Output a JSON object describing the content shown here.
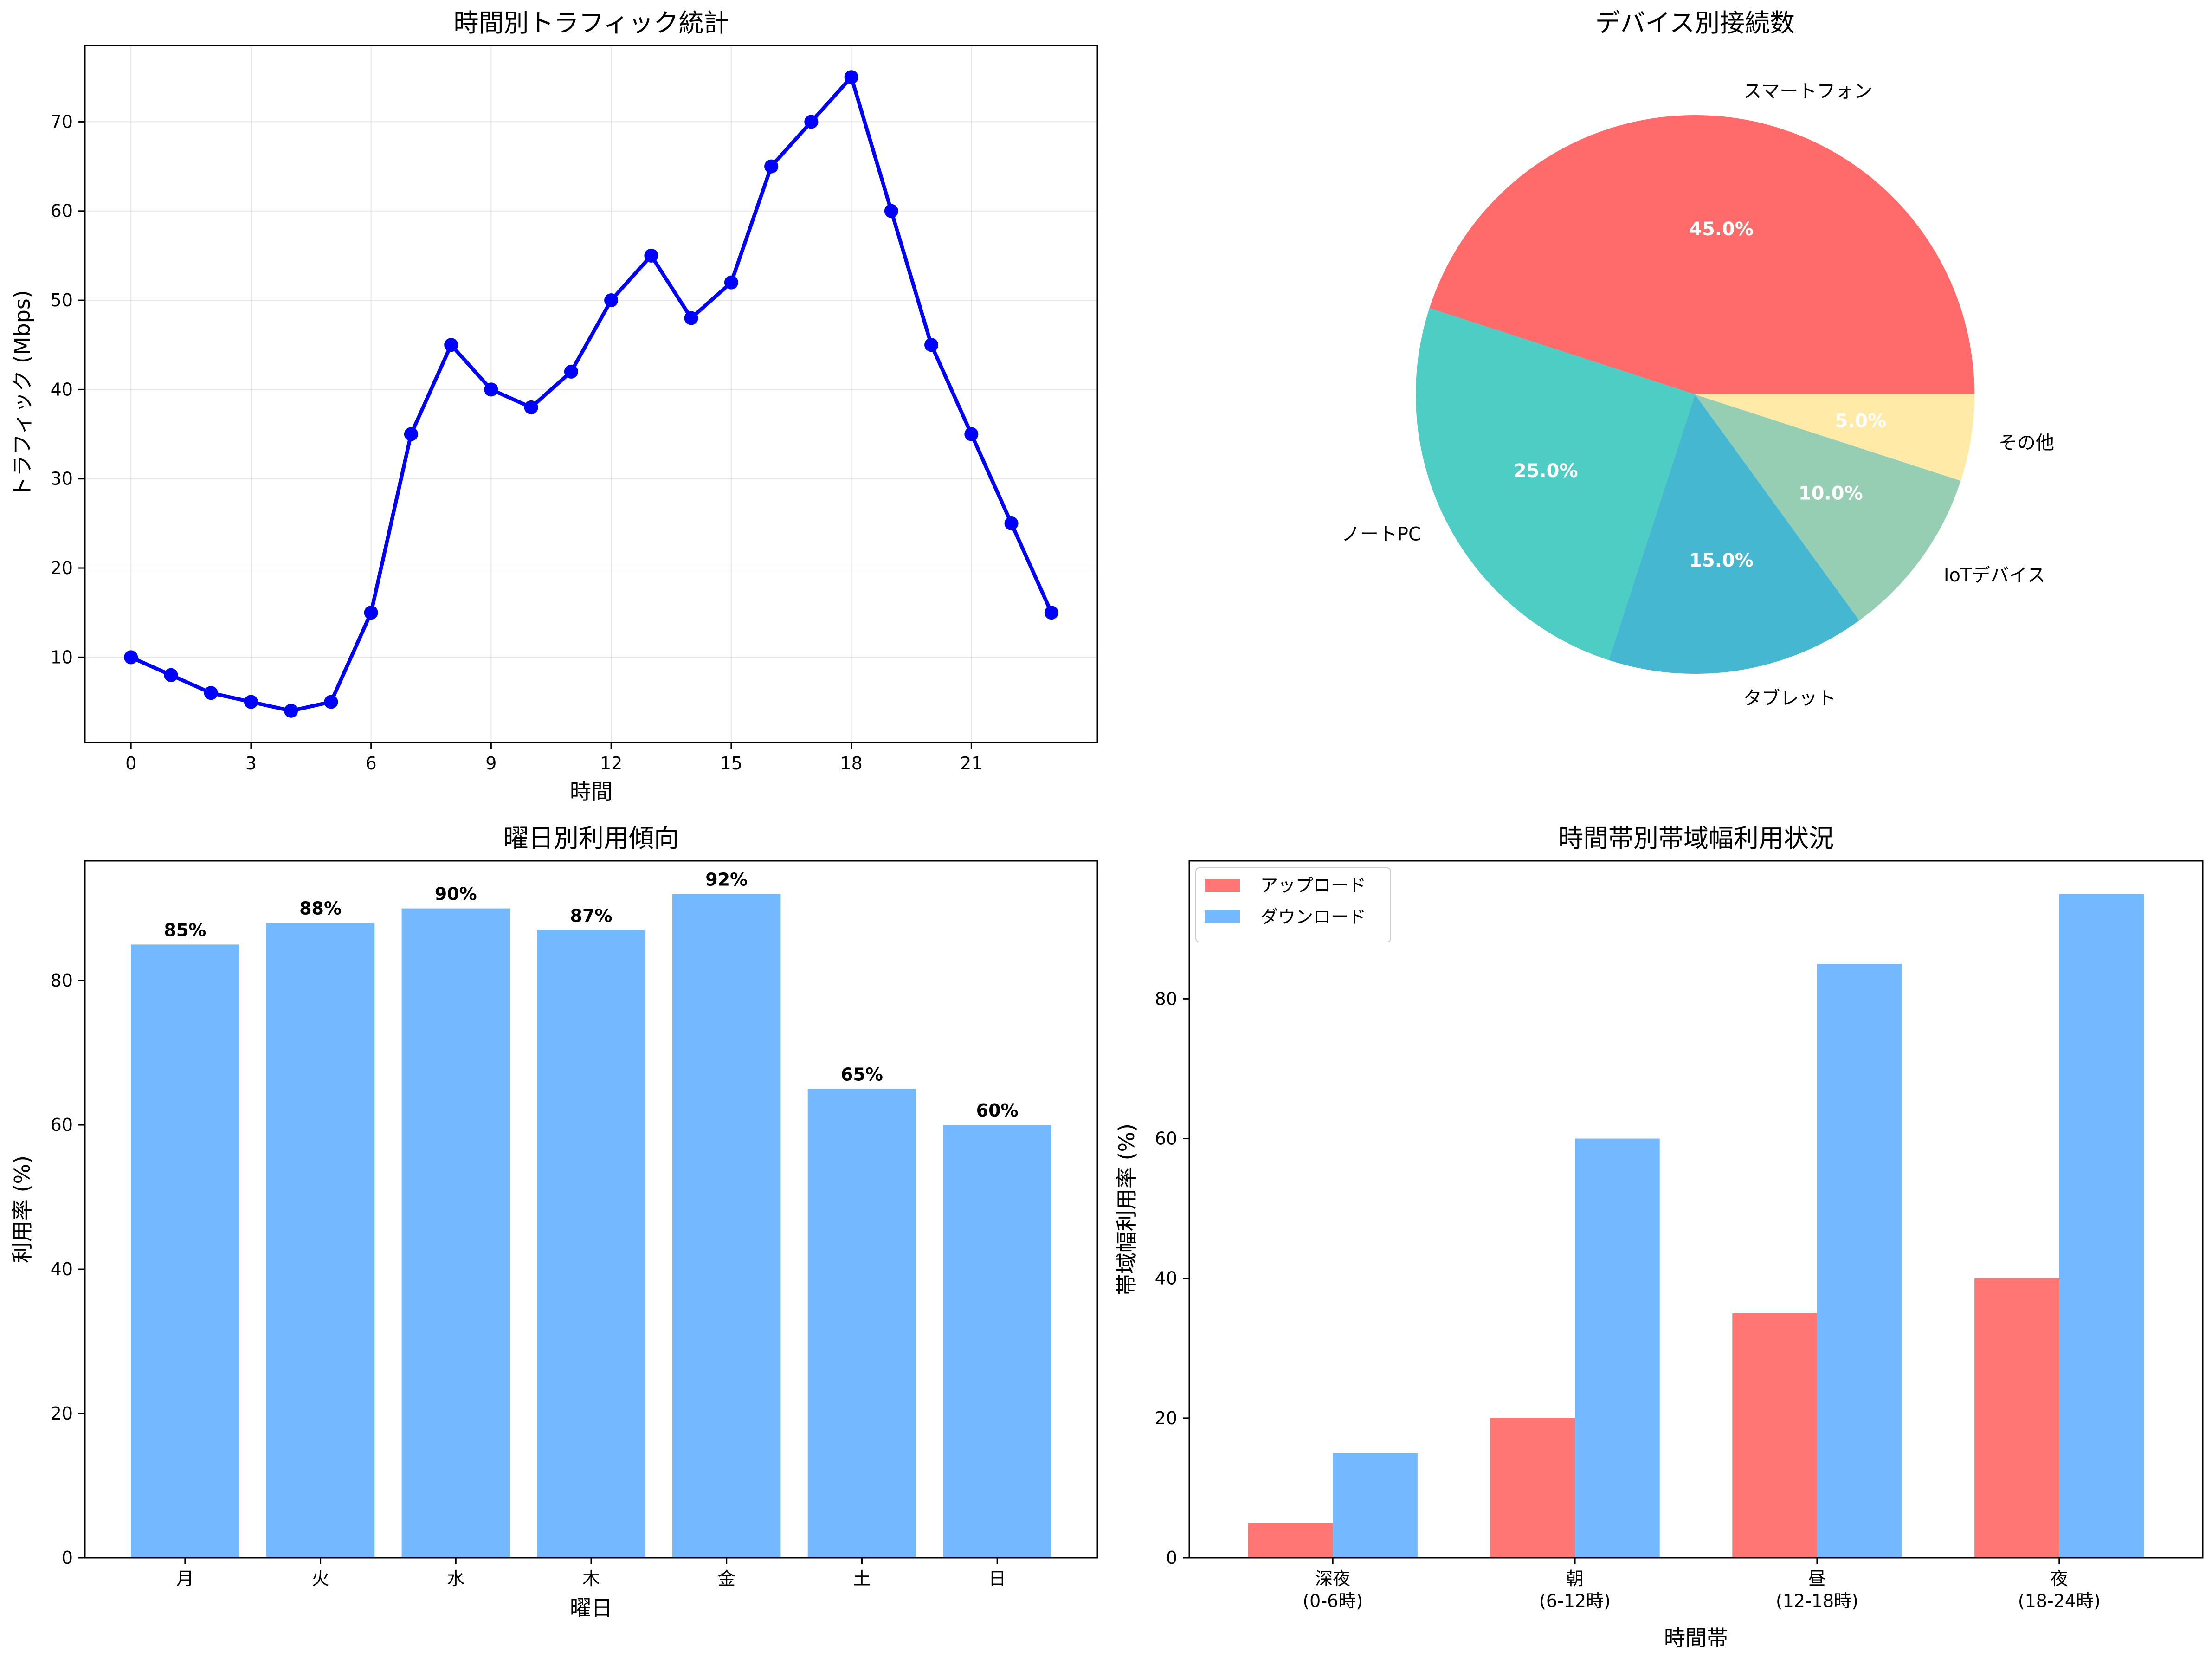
{
  "chart_data": [
    {
      "type": "line",
      "title": "時間別トラフィック統計",
      "xlabel": "時間",
      "ylabel": "トラフィック (Mbps)",
      "x": [
        0,
        1,
        2,
        3,
        4,
        5,
        6,
        7,
        8,
        9,
        10,
        11,
        12,
        13,
        14,
        15,
        16,
        17,
        18,
        19,
        20,
        21,
        22,
        23
      ],
      "values": [
        10,
        8,
        6,
        5,
        4,
        5,
        15,
        35,
        45,
        40,
        38,
        42,
        50,
        55,
        48,
        52,
        65,
        70,
        75,
        60,
        45,
        35,
        25,
        15
      ],
      "xticks": [
        0,
        3,
        6,
        9,
        12,
        15,
        18,
        21
      ],
      "yticks": [
        10,
        20,
        30,
        40,
        50,
        60,
        70
      ],
      "xlim": [
        -1.15,
        24.15
      ],
      "ylim": [
        0.45,
        78.55
      ],
      "grid": true,
      "color": "#0000ff"
    },
    {
      "type": "pie",
      "title": "デバイス別接続数",
      "labels": [
        "スマートフォン",
        "ノートPC",
        "タブレット",
        "IoTデバイス",
        "その他"
      ],
      "values": [
        45,
        25,
        15,
        10,
        5
      ],
      "percent_labels": [
        "45.0%",
        "25.0%",
        "15.0%",
        "10.0%",
        "5.0%"
      ],
      "colors": [
        "#ff6b6b",
        "#4ecdc4",
        "#45b7d1",
        "#96ceb4",
        "#ffeaa7"
      ]
    },
    {
      "type": "bar",
      "title": "曜日別利用傾向",
      "xlabel": "曜日",
      "ylabel": "利用率 (%)",
      "categories": [
        "月",
        "火",
        "水",
        "木",
        "金",
        "土",
        "日"
      ],
      "values": [
        85,
        88,
        90,
        87,
        92,
        65,
        60
      ],
      "value_labels": [
        "85%",
        "88%",
        "90%",
        "87%",
        "92%",
        "65%",
        "60%"
      ],
      "yticks": [
        0,
        20,
        40,
        60,
        80
      ],
      "ylim": [
        0,
        96.6
      ],
      "color": "#74b9ff"
    },
    {
      "type": "bar",
      "title": "時間帯別帯域幅利用状況",
      "xlabel": "時間帯",
      "ylabel": "帯域幅利用率 (%)",
      "categories": [
        [
          "深夜",
          "(0-6時)"
        ],
        [
          "朝",
          "(6-12時)"
        ],
        [
          "昼",
          "(12-18時)"
        ],
        [
          "夜",
          "(18-24時)"
        ]
      ],
      "series": [
        {
          "name": "アップロード",
          "values": [
            5,
            20,
            35,
            40
          ],
          "color": "#ff7675"
        },
        {
          "name": "ダウンロード",
          "values": [
            15,
            60,
            85,
            95
          ],
          "color": "#74b9ff"
        }
      ],
      "yticks": [
        0,
        20,
        40,
        60,
        80
      ],
      "ylim": [
        0,
        99.75
      ],
      "legend": "top-left"
    }
  ]
}
